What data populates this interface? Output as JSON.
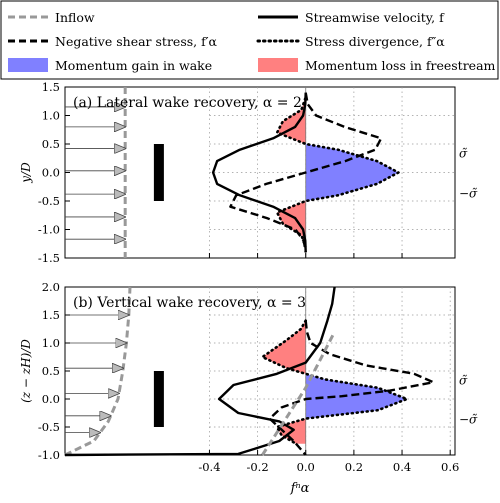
{
  "legend": {
    "items": [
      {
        "label": "Inflow",
        "kind": "line",
        "color": "#999999",
        "dash": "dashed"
      },
      {
        "label": "Streamwise velocity, f",
        "kind": "line",
        "color": "#000000",
        "dash": "solid"
      },
      {
        "label": "Negative shear stress, f′α",
        "kind": "line",
        "color": "#000000",
        "dash": "dashed"
      },
      {
        "label": "Stress divergence, f″α",
        "kind": "line",
        "color": "#000000",
        "dash": "dotted"
      },
      {
        "label": "Momentum gain in wake",
        "kind": "patch",
        "color": "#8080ff"
      },
      {
        "label": "Momentum loss in freestream",
        "kind": "patch",
        "color": "#ff8080"
      }
    ]
  },
  "xlabel": "fⁿα",
  "chart_data": [
    {
      "type": "line",
      "title": "(a) Lateral wake recovery, α = 2",
      "ylabel": "y/D",
      "xlim": [
        -1.0,
        0.62
      ],
      "ylim": [
        -1.5,
        1.5
      ],
      "yticks": [
        "-1.5",
        "-1.0",
        "-0.5",
        "0.0",
        "0.5",
        "1.0",
        "1.5"
      ],
      "xticks": [],
      "xtick_values": [
        -0.4,
        -0.2,
        0.0,
        0.2,
        0.4
      ],
      "grid": true,
      "right_labels": [
        {
          "text": "σ̃",
          "y": 0.35
        },
        {
          "text": "−σ̃",
          "y": -0.35
        }
      ],
      "rotor": {
        "x": -0.61,
        "y0": -0.5,
        "y1": 0.5
      },
      "inflow": {
        "x": -0.75,
        "xstart": -1.0,
        "arrows_y": [
          1.15,
          0.8,
          0.42,
          0.03,
          -0.38,
          -0.78,
          -1.17
        ]
      },
      "series": [
        {
          "name": "Streamwise velocity, f",
          "style": "solid",
          "x": [
            0.0,
            -0.002,
            -0.011,
            -0.044,
            -0.135,
            -0.274,
            -0.368,
            -0.385,
            -0.368,
            -0.274,
            -0.135,
            -0.044,
            -0.011,
            -0.002,
            0.0
          ],
          "y": [
            1.4,
            1.2,
            1.0,
            0.8,
            0.6,
            0.4,
            0.2,
            0.0,
            -0.2,
            -0.4,
            -0.6,
            -0.8,
            -1.0,
            -1.2,
            -1.4
          ]
        },
        {
          "name": "Negative shear stress, f′α",
          "style": "dashed",
          "x": [
            0.0,
            0.008,
            0.043,
            0.161,
            0.313,
            0.289,
            0.164,
            0.0,
            -0.164,
            -0.289,
            -0.313,
            -0.161,
            -0.043,
            -0.008,
            0.0
          ],
          "y": [
            1.4,
            1.2,
            1.0,
            0.8,
            0.6,
            0.4,
            0.2,
            0.0,
            -0.2,
            -0.4,
            -0.6,
            -0.8,
            -1.0,
            -1.2,
            -1.4
          ]
        },
        {
          "name": "Stress divergence, f″α",
          "style": "dotted",
          "x": [
            -0.002,
            -0.018,
            -0.095,
            -0.119,
            0.0,
            0.134,
            0.296,
            0.385,
            0.296,
            0.134,
            0.0,
            -0.119,
            -0.095,
            -0.018,
            -0.002
          ],
          "y": [
            1.3,
            1.1,
            0.9,
            0.7,
            0.5,
            0.4,
            0.2,
            0.0,
            -0.2,
            -0.4,
            -0.5,
            -0.7,
            -0.9,
            -1.1,
            -1.3
          ]
        }
      ]
    },
    {
      "type": "line",
      "title": "(b) Vertical wake recovery, α = 3",
      "ylabel": "(z − zH)/D",
      "xlim": [
        -1.0,
        0.62
      ],
      "ylim": [
        -1.0,
        2.0
      ],
      "yticks": [
        "-1.0",
        "-0.5",
        "0.0",
        "0.5",
        "1.0",
        "1.5",
        "2.0"
      ],
      "xticks": [
        "-0.4",
        "-0.2",
        "0.0",
        "0.2",
        "0.4",
        "0.6"
      ],
      "xtick_values": [
        -0.4,
        -0.2,
        0.0,
        0.2,
        0.4,
        0.6
      ],
      "grid": true,
      "right_labels": [
        {
          "text": "σ̃",
          "y": 0.35
        },
        {
          "text": "−σ̃",
          "y": -0.35
        }
      ],
      "rotor": {
        "x": -0.61,
        "y0": -0.5,
        "y1": 0.5
      },
      "inflow": {
        "curve_x": [
          -1.0,
          -0.88,
          -0.82,
          -0.78,
          -0.76,
          -0.745,
          -0.735,
          -0.73
        ],
        "curve_y": [
          -1.0,
          -0.75,
          -0.4,
          0.0,
          0.5,
          1.0,
          1.5,
          2.0
        ],
        "arrows_y": [
          1.5,
          1.0,
          0.55,
          0.1,
          -0.3,
          -0.6
        ]
      },
      "series": [
        {
          "name": "Streamwise velocity, f",
          "style": "solid",
          "x": [
            -1.0,
            -0.28,
            -0.22,
            -0.11,
            -0.05,
            -0.11,
            -0.28,
            -0.36,
            -0.3,
            -0.12,
            0.0,
            0.06,
            0.09,
            0.11,
            0.12
          ],
          "y": [
            -1.0,
            -0.98,
            -0.9,
            -0.75,
            -0.55,
            -0.4,
            -0.25,
            0.0,
            0.25,
            0.45,
            0.65,
            1.0,
            1.4,
            1.7,
            2.0
          ]
        },
        {
          "name": "Negative shear stress, f′α",
          "style": "dashed",
          "x": [
            0.0,
            0.005,
            0.02,
            0.1,
            0.25,
            0.45,
            0.53,
            0.35,
            0.15,
            0.0,
            -0.1,
            -0.15,
            -0.1,
            -0.05,
            0.0
          ],
          "y": [
            1.4,
            1.2,
            1.0,
            0.8,
            0.6,
            0.45,
            0.3,
            0.15,
            0.05,
            0.0,
            -0.15,
            -0.35,
            -0.55,
            -0.75,
            -1.0
          ]
        },
        {
          "name": "Stress divergence, f″α",
          "style": "dotted",
          "x": [
            0.0,
            -0.02,
            -0.08,
            -0.18,
            -0.08,
            0.0,
            0.08,
            0.3,
            0.42,
            0.3,
            0.1,
            0.0,
            -0.12,
            -0.1,
            -0.04
          ],
          "y": [
            1.4,
            1.25,
            1.05,
            0.75,
            0.55,
            0.45,
            0.35,
            0.2,
            0.0,
            -0.2,
            -0.3,
            -0.35,
            -0.5,
            -0.65,
            -0.8
          ]
        },
        {
          "name": "Inflow profile near fn=0",
          "style": "greydash",
          "x": [
            -0.18,
            -0.12,
            -0.06,
            0.0,
            0.06,
            0.12
          ],
          "y": [
            -1.0,
            -0.6,
            -0.2,
            0.2,
            0.7,
            1.2
          ]
        }
      ]
    }
  ]
}
